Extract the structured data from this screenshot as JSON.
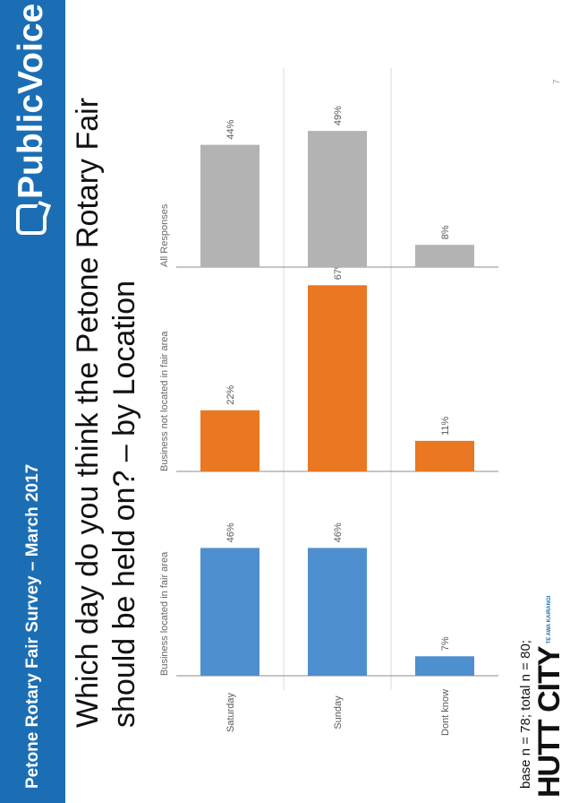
{
  "header": {
    "survey_title": "Petone Rotary Fair Survey – March 2017",
    "logo_text": "PublicVoice"
  },
  "question": "Which day do you think the Petone Rotary Fair should be held on? – by Location",
  "footnote": "base n = 78; total n = 80;",
  "page_number": "7",
  "footer_logo": {
    "main": "HUTT CITY",
    "sub": "TE AWA KAIRANGI"
  },
  "colors": {
    "band": "#1c6eb4",
    "blue": "#4e8fcf",
    "orange": "#ea7722",
    "gray": "#b3b3b3"
  },
  "chart_data": {
    "type": "bar",
    "categories": [
      "Saturday",
      "Sunday",
      "Dont know"
    ],
    "panels": [
      {
        "name": "Business located in fair area",
        "color": "#4e8fcf",
        "values": [
          46,
          46,
          7
        ]
      },
      {
        "name": "Business not located in fair area",
        "color": "#ea7722",
        "values": [
          22,
          67,
          11
        ]
      },
      {
        "name": "All Responses",
        "color": "#b3b3b3",
        "values": [
          44,
          49,
          8
        ]
      }
    ],
    "value_suffix": "%",
    "ylim": [
      0,
      70
    ],
    "grid": false
  }
}
